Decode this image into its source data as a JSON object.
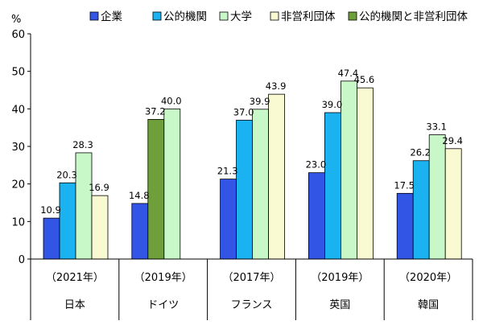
{
  "chart_data": {
    "type": "bar",
    "unit_label": "%",
    "ylim": [
      0,
      60
    ],
    "yticks": [
      0,
      10,
      20,
      30,
      40,
      50,
      60
    ],
    "grid": false,
    "legend_position": "top",
    "series": [
      {
        "name": "企業",
        "color": "#3355e6"
      },
      {
        "name": "公的機関",
        "color": "#1ab2f0"
      },
      {
        "name": "大学",
        "color": "#c8f7c8"
      },
      {
        "name": "非営利団体",
        "color": "#fafad2"
      },
      {
        "name": "公的機関と非営利団体",
        "color": "#6f9f3a"
      }
    ],
    "groups": [
      {
        "country": "日本",
        "year": "（2021年）",
        "bars": [
          {
            "series": "企業",
            "value": 10.9,
            "label": "10.9"
          },
          {
            "series": "公的機関",
            "value": 20.3,
            "label": "20.3"
          },
          {
            "series": "大学",
            "value": 28.3,
            "label": "28.3"
          },
          {
            "series": "非営利団体",
            "value": 16.9,
            "label": "16.9"
          }
        ]
      },
      {
        "country": "ドイツ",
        "year": "（2019年）",
        "bars": [
          {
            "series": "企業",
            "value": 14.8,
            "label": "14.8"
          },
          {
            "series": "公的機関と非営利団体",
            "value": 37.2,
            "label": "37.2"
          },
          {
            "series": "大学",
            "value": 40.0,
            "label": "40.0"
          }
        ]
      },
      {
        "country": "フランス",
        "year": "（2017年）",
        "bars": [
          {
            "series": "企業",
            "value": 21.3,
            "label": "21.3"
          },
          {
            "series": "公的機関",
            "value": 37.0,
            "label": "37.0"
          },
          {
            "series": "大学",
            "value": 39.9,
            "label": "39.9"
          },
          {
            "series": "非営利団体",
            "value": 43.9,
            "label": "43.9"
          }
        ]
      },
      {
        "country": "英国",
        "year": "（2019年）",
        "bars": [
          {
            "series": "企業",
            "value": 23.0,
            "label": "23.0"
          },
          {
            "series": "公的機関",
            "value": 39.0,
            "label": "39.0"
          },
          {
            "series": "大学",
            "value": 47.4,
            "label": "47.4"
          },
          {
            "series": "非営利団体",
            "value": 45.6,
            "label": "45.6"
          }
        ]
      },
      {
        "country": "韓国",
        "year": "（2020年）",
        "bars": [
          {
            "series": "企業",
            "value": 17.5,
            "label": "17.5"
          },
          {
            "series": "公的機関",
            "value": 26.2,
            "label": "26.2"
          },
          {
            "series": "大学",
            "value": 33.1,
            "label": "33.1"
          },
          {
            "series": "非営利団体",
            "value": 29.4,
            "label": "29.4"
          }
        ]
      }
    ]
  }
}
